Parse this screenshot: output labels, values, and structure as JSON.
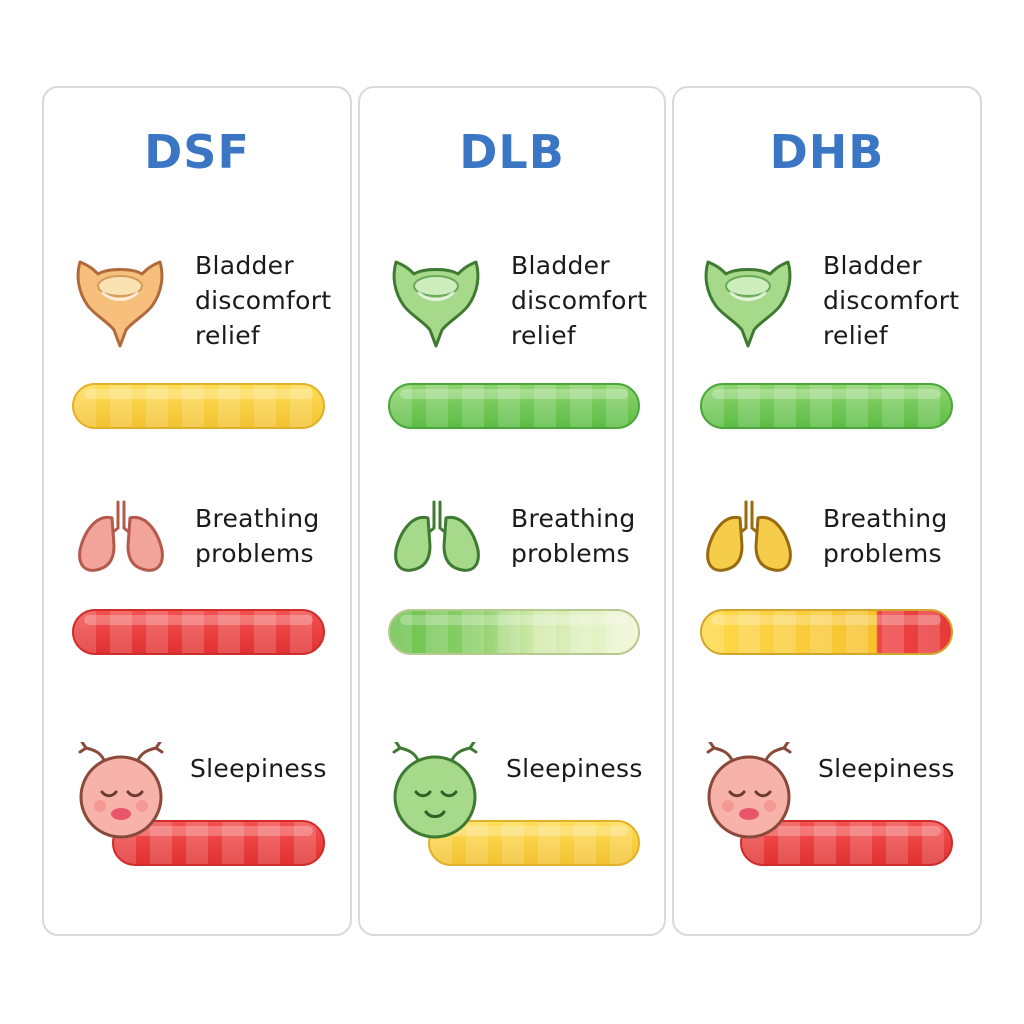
{
  "columns": [
    {
      "title": "DSF",
      "metrics": [
        {
          "label": "Bladder\ndiscomfort\nrelief",
          "icon": "bladder-icon",
          "icon_color": "#f6c07c",
          "bar_color": "yellow"
        },
        {
          "label": "Breathing\nproblems",
          "icon": "lungs-icon",
          "icon_color": "#f2a39a",
          "bar_color": "red"
        },
        {
          "label": "Sleepiness",
          "icon": "sleepy-face-icon",
          "icon_color": "#f7b3aa",
          "bar_color": "red"
        }
      ]
    },
    {
      "title": "DLB",
      "metrics": [
        {
          "label": "Bladder\ndiscomfort\nrelief",
          "icon": "bladder-icon",
          "icon_color": "#a6d98a",
          "bar_color": "green"
        },
        {
          "label": "Breathing\nproblems",
          "icon": "lungs-icon",
          "icon_color": "#a6d98a",
          "bar_color": "green fading to pale yellow"
        },
        {
          "label": "Sleepiness",
          "icon": "sleepy-face-icon",
          "icon_color": "#a6d98a",
          "bar_color": "yellow"
        }
      ]
    },
    {
      "title": "DHB",
      "metrics": [
        {
          "label": "Bladder\ndiscomfort\nrelief",
          "icon": "bladder-icon",
          "icon_color": "#a6d98a",
          "bar_color": "green"
        },
        {
          "label": "Breathing\nproblems",
          "icon": "lungs-icon",
          "icon_color": "#f6cd4a",
          "bar_color": "yellow then red",
          "yellow_fraction": 0.7
        },
        {
          "label": "Sleepiness",
          "icon": "sleepy-face-icon",
          "icon_color": "#f7b3aa",
          "bar_color": "red"
        }
      ]
    }
  ],
  "colors": {
    "title": "#3a76c4",
    "yellow": "#f6c935",
    "green": "#6cc452",
    "red": "#e43a3a",
    "card_border": "#d9d9d9"
  }
}
